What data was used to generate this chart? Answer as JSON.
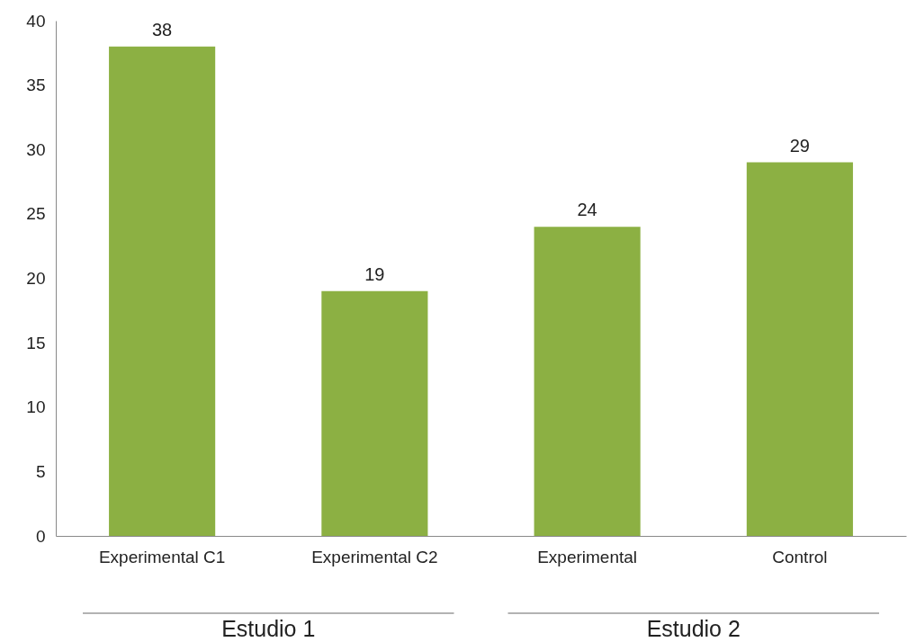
{
  "chart_data": {
    "type": "bar",
    "categories": [
      "Experimental C1",
      "Experimental C2",
      "Experimental",
      "Control"
    ],
    "values": [
      38,
      19,
      24,
      29
    ],
    "color": "#8cb043",
    "ylim": [
      0,
      40
    ],
    "yticks": [
      0,
      5,
      10,
      15,
      20,
      25,
      30,
      35,
      40
    ],
    "grid": false,
    "data_labels": true,
    "annotations": [
      "Estudio 1",
      "Estudio 2"
    ]
  }
}
